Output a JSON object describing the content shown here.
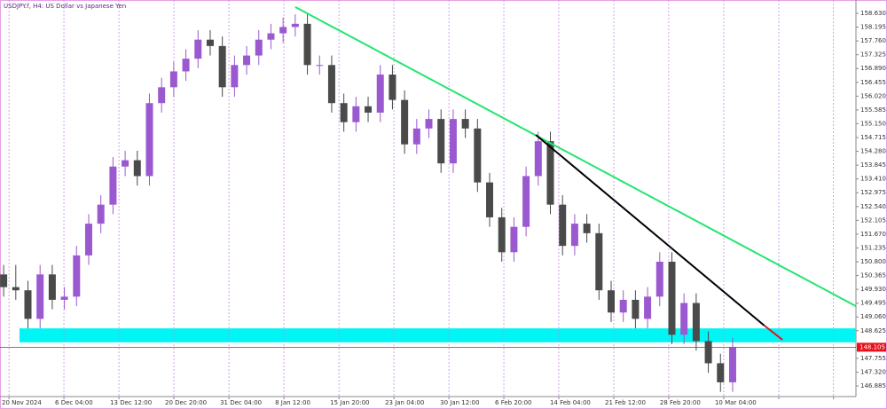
{
  "chart_data": {
    "type": "candlestick",
    "title": "USDJPY.f, H4:  US Dollar vs Japanese Yen",
    "up_color": "#9b59d0",
    "down_color": "#4a4a4a",
    "open": [
      150.4,
      150.0,
      149.9,
      149.0,
      150.4,
      149.6,
      149.7,
      151.0,
      152.0,
      152.6,
      153.8,
      154.0,
      153.5,
      155.8,
      156.3,
      156.8,
      157.2,
      157.8,
      157.6,
      156.3,
      157.0,
      157.3,
      157.8,
      158.0,
      158.2,
      158.3,
      157.0,
      157.0,
      155.8,
      155.2,
      155.7,
      155.5,
      156.7,
      155.9,
      154.5,
      155.0,
      155.3,
      153.9,
      155.3,
      155.0,
      153.3,
      152.2,
      151.1,
      151.9,
      153.5,
      154.6,
      152.6,
      151.3,
      152.0,
      151.7,
      149.9,
      149.2,
      149.6,
      149.0,
      149.7,
      150.8,
      148.5,
      149.5,
      148.3,
      147.6,
      147.0
    ],
    "high": [
      150.7,
      150.7,
      150.2,
      150.7,
      150.7,
      150.0,
      151.3,
      152.3,
      152.9,
      154.1,
      154.3,
      154.3,
      156.1,
      156.6,
      157.1,
      157.5,
      158.1,
      158.1,
      157.9,
      157.3,
      157.6,
      158.1,
      158.3,
      158.5,
      158.6,
      158.6,
      157.3,
      157.3,
      156.1,
      156.0,
      156.0,
      157.0,
      157.0,
      156.2,
      155.3,
      155.6,
      155.6,
      155.6,
      155.6,
      155.3,
      153.6,
      152.5,
      152.2,
      153.8,
      154.9,
      154.9,
      152.9,
      152.3,
      152.3,
      152.0,
      150.2,
      149.9,
      149.9,
      150.0,
      151.1,
      151.1,
      149.8,
      149.8,
      148.6,
      147.9,
      148.4
    ],
    "low": [
      149.7,
      149.6,
      148.7,
      148.7,
      149.3,
      149.3,
      149.4,
      150.7,
      151.7,
      152.3,
      153.5,
      153.2,
      153.2,
      155.5,
      156.0,
      156.5,
      156.9,
      157.3,
      156.0,
      156.0,
      156.7,
      157.0,
      157.5,
      157.7,
      157.9,
      156.7,
      156.7,
      155.5,
      154.9,
      154.9,
      155.2,
      155.2,
      155.6,
      154.2,
      154.2,
      154.7,
      153.6,
      153.6,
      154.7,
      153.0,
      151.9,
      150.8,
      150.8,
      151.6,
      153.2,
      152.3,
      151.0,
      151.0,
      151.4,
      149.6,
      148.9,
      148.9,
      148.7,
      148.7,
      149.4,
      148.2,
      148.2,
      148.0,
      147.3,
      146.7,
      146.7
    ],
    "close": [
      150.0,
      149.9,
      149.0,
      150.4,
      149.6,
      149.7,
      151.0,
      152.0,
      152.6,
      153.8,
      154.0,
      153.5,
      155.8,
      156.3,
      156.8,
      157.2,
      157.8,
      157.6,
      156.3,
      157.0,
      157.3,
      157.8,
      158.0,
      158.2,
      158.3,
      157.0,
      157.0,
      155.8,
      155.2,
      155.7,
      155.5,
      156.7,
      155.9,
      154.5,
      155.0,
      155.3,
      153.9,
      155.3,
      155.0,
      153.3,
      152.2,
      151.1,
      151.9,
      153.5,
      154.6,
      152.6,
      151.3,
      152.0,
      151.7,
      149.9,
      149.2,
      149.6,
      149.0,
      149.7,
      150.8,
      148.5,
      149.5,
      148.3,
      147.6,
      147.0,
      148.1
    ],
    "xlim": [
      -0.3,
      70.15
    ],
    "xticks": [
      {
        "value": 0.44,
        "label": "20 Nov 2024"
      },
      {
        "value": 4.96,
        "label": "6 Dec 04:00"
      },
      {
        "value": 9.49,
        "label": "13 Dec 12:00"
      },
      {
        "value": 14.01,
        "label": "20 Dec 20:00"
      },
      {
        "value": 18.54,
        "label": "31 Dec 04:00"
      },
      {
        "value": 23.07,
        "label": "8 Jan 12:00"
      },
      {
        "value": 27.6,
        "label": "15 Jan 20:00"
      },
      {
        "value": 32.12,
        "label": "23 Jan 04:00"
      },
      {
        "value": 36.65,
        "label": "30 Jan 12:00"
      },
      {
        "value": 41.17,
        "label": "6 Feb 20:00"
      },
      {
        "value": 45.69,
        "label": "14 Feb 04:00"
      },
      {
        "value": 50.22,
        "label": "21 Feb 12:00"
      },
      {
        "value": 54.74,
        "label": "28 Feb 20:00"
      },
      {
        "value": 59.27,
        "label": "10 Mar 04:00"
      },
      {
        "value": 63.8,
        "label": null
      },
      {
        "value": 68.3,
        "label": null
      }
    ],
    "ylim": [
      146.55,
      159.05
    ],
    "yticks": [
      {
        "value": 158.63,
        "label": "158.630"
      },
      158.195,
      {
        "value": 157.76,
        "label": "157.760"
      },
      157.325,
      {
        "value": 156.89,
        "label": "156.890"
      },
      156.455,
      {
        "value": 156.02,
        "label": "156.020"
      },
      155.585,
      {
        "value": 155.15,
        "label": "155.150"
      },
      154.715,
      {
        "value": 154.28,
        "label": "154.280"
      },
      153.845,
      {
        "value": 153.41,
        "label": "153.410"
      },
      152.975,
      {
        "value": 152.54,
        "label": "152.540"
      },
      152.105,
      {
        "value": 151.67,
        "label": "151.670"
      },
      151.235,
      {
        "value": 150.8,
        "label": "150.800"
      },
      150.365,
      {
        "value": 149.93,
        "label": "149.930"
      },
      149.495,
      {
        "value": 149.06,
        "label": "149.060"
      },
      148.625,
      147.755,
      {
        "value": 147.32,
        "label": "147.320"
      },
      146.885
    ],
    "zone": {
      "color": "#00f5f5",
      "y": [
        148.26,
        148.7
      ]
    },
    "last_price": 148.105,
    "last_price_color": "#e8101a",
    "lines": [
      {
        "color": "#22e66e",
        "x": [
          24.0,
          70.15
        ],
        "y": [
          158.83,
          149.4
        ]
      },
      {
        "color": "#000000",
        "x": [
          43.8,
          62.6
        ],
        "y": [
          154.8,
          148.79
        ]
      },
      {
        "color": "#e8101a",
        "x": [
          62.6,
          64.1
        ],
        "y": [
          148.79,
          148.34
        ]
      }
    ]
  }
}
